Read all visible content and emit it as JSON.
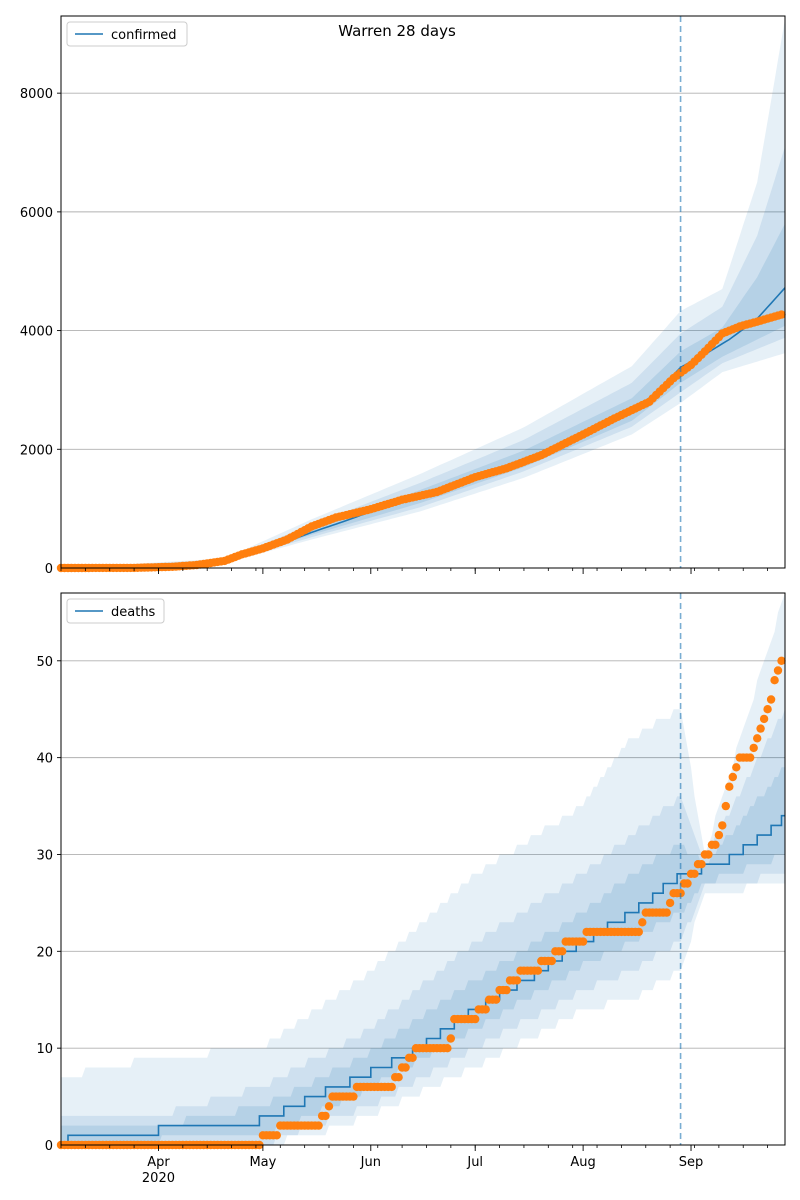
{
  "figure_title": "Warren 28 days",
  "colors": {
    "model_line": "#1f77b4",
    "observed_points": "#ff7f0e",
    "band": "#1f77b4",
    "forecast_start_line": "#1f77b4",
    "grid": "#b0b0b0"
  },
  "x_axis": {
    "start": "2020-03-04",
    "end": "2020-09-28",
    "forecast_start": "2020-08-29",
    "major_ticks": [
      {
        "date": "2020-04-01",
        "label": "Apr",
        "sublabel": "2020"
      },
      {
        "date": "2020-05-01",
        "label": "May",
        "sublabel": ""
      },
      {
        "date": "2020-06-01",
        "label": "Jun",
        "sublabel": ""
      },
      {
        "date": "2020-07-01",
        "label": "Jul",
        "sublabel": ""
      },
      {
        "date": "2020-08-01",
        "label": "Aug",
        "sublabel": ""
      },
      {
        "date": "2020-09-01",
        "label": "Sep",
        "sublabel": ""
      }
    ]
  },
  "chart_data": [
    {
      "type": "line",
      "legend": "confirmed",
      "legend_position": "upper-left",
      "ylim": [
        0,
        9300
      ],
      "yticks": [
        0,
        2000,
        4000,
        6000,
        8000
      ],
      "grid": "horizontal",
      "line_knots": [
        [
          "2020-03-04",
          0
        ],
        [
          "2020-03-20",
          2
        ],
        [
          "2020-04-01",
          10
        ],
        [
          "2020-04-10",
          40
        ],
        [
          "2020-04-20",
          110
        ],
        [
          "2020-04-28",
          260
        ],
        [
          "2020-05-05",
          380
        ],
        [
          "2020-05-15",
          600
        ],
        [
          "2020-05-25",
          800
        ],
        [
          "2020-06-01",
          950
        ],
        [
          "2020-06-15",
          1200
        ],
        [
          "2020-07-01",
          1530
        ],
        [
          "2020-07-15",
          1830
        ],
        [
          "2020-08-01",
          2250
        ],
        [
          "2020-08-15",
          2650
        ],
        [
          "2020-08-22",
          2950
        ],
        [
          "2020-08-29",
          3380
        ],
        [
          "2020-09-05",
          3600
        ],
        [
          "2020-09-12",
          3850
        ],
        [
          "2020-09-20",
          4200
        ],
        [
          "2020-09-28",
          4720
        ]
      ],
      "bands": [
        {
          "lower": [
            [
              "2020-03-04",
              0
            ],
            [
              "2020-04-20",
              80
            ],
            [
              "2020-05-15",
              480
            ],
            [
              "2020-06-15",
              950
            ],
            [
              "2020-07-15",
              1520
            ],
            [
              "2020-08-15",
              2250
            ],
            [
              "2020-08-29",
              2780
            ],
            [
              "2020-09-10",
              3300
            ],
            [
              "2020-09-28",
              3620
            ]
          ],
          "upper": [
            [
              "2020-03-04",
              0
            ],
            [
              "2020-04-20",
              160
            ],
            [
              "2020-05-15",
              820
            ],
            [
              "2020-06-15",
              1580
            ],
            [
              "2020-07-15",
              2370
            ],
            [
              "2020-08-15",
              3400
            ],
            [
              "2020-08-29",
              4330
            ],
            [
              "2020-09-10",
              4700
            ],
            [
              "2020-09-20",
              6500
            ],
            [
              "2020-09-28",
              9250
            ]
          ]
        },
        {
          "lower": [
            [
              "2020-03-04",
              0
            ],
            [
              "2020-04-20",
              90
            ],
            [
              "2020-05-15",
              520
            ],
            [
              "2020-06-15",
              1020
            ],
            [
              "2020-07-15",
              1630
            ],
            [
              "2020-08-15",
              2380
            ],
            [
              "2020-08-29",
              2960
            ],
            [
              "2020-09-10",
              3450
            ],
            [
              "2020-09-28",
              3880
            ]
          ],
          "upper": [
            [
              "2020-03-04",
              0
            ],
            [
              "2020-04-20",
              140
            ],
            [
              "2020-05-15",
              730
            ],
            [
              "2020-06-15",
              1430
            ],
            [
              "2020-07-15",
              2160
            ],
            [
              "2020-08-15",
              3120
            ],
            [
              "2020-08-29",
              3950
            ],
            [
              "2020-09-10",
              4400
            ],
            [
              "2020-09-20",
              5600
            ],
            [
              "2020-09-28",
              7100
            ]
          ]
        },
        {
          "lower": [
            [
              "2020-03-04",
              0
            ],
            [
              "2020-04-20",
              100
            ],
            [
              "2020-05-15",
              560
            ],
            [
              "2020-06-15",
              1090
            ],
            [
              "2020-07-15",
              1700
            ],
            [
              "2020-08-15",
              2480
            ],
            [
              "2020-08-29",
              3120
            ],
            [
              "2020-09-10",
              3560
            ],
            [
              "2020-09-28",
              4080
            ]
          ],
          "upper": [
            [
              "2020-03-04",
              0
            ],
            [
              "2020-04-20",
              125
            ],
            [
              "2020-05-15",
              660
            ],
            [
              "2020-06-15",
              1310
            ],
            [
              "2020-07-15",
              1980
            ],
            [
              "2020-08-15",
              2860
            ],
            [
              "2020-08-29",
              3650
            ],
            [
              "2020-09-10",
              4050
            ],
            [
              "2020-09-20",
              4900
            ],
            [
              "2020-09-28",
              5800
            ]
          ]
        }
      ],
      "observed_knots": [
        [
          "2020-03-04",
          0
        ],
        [
          "2020-03-25",
          2
        ],
        [
          "2020-04-05",
          20
        ],
        [
          "2020-04-12",
          50
        ],
        [
          "2020-04-20",
          120
        ],
        [
          "2020-04-25",
          230
        ],
        [
          "2020-05-01",
          330
        ],
        [
          "2020-05-08",
          480
        ],
        [
          "2020-05-15",
          700
        ],
        [
          "2020-05-22",
          850
        ],
        [
          "2020-06-01",
          990
        ],
        [
          "2020-06-10",
          1150
        ],
        [
          "2020-06-20",
          1280
        ],
        [
          "2020-07-01",
          1530
        ],
        [
          "2020-07-10",
          1680
        ],
        [
          "2020-07-20",
          1900
        ],
        [
          "2020-08-01",
          2250
        ],
        [
          "2020-08-10",
          2520
        ],
        [
          "2020-08-20",
          2800
        ],
        [
          "2020-08-27",
          3200
        ],
        [
          "2020-09-01",
          3420
        ],
        [
          "2020-09-05",
          3650
        ],
        [
          "2020-09-10",
          3950
        ],
        [
          "2020-09-15",
          4070
        ],
        [
          "2020-09-20",
          4150
        ],
        [
          "2020-09-27",
          4270
        ]
      ]
    },
    {
      "type": "line",
      "legend": "deaths",
      "legend_position": "upper-left",
      "ylim": [
        0,
        57
      ],
      "yticks": [
        0,
        10,
        20,
        30,
        40,
        50
      ],
      "grid": "horizontal",
      "step": true,
      "line_knots": [
        [
          "2020-03-04",
          0
        ],
        [
          "2020-03-08",
          1
        ],
        [
          "2020-04-25",
          2
        ],
        [
          "2020-05-04",
          3
        ],
        [
          "2020-05-15",
          5
        ],
        [
          "2020-06-01",
          7.5
        ],
        [
          "2020-06-15",
          10
        ],
        [
          "2020-07-01",
          14
        ],
        [
          "2020-07-15",
          17
        ],
        [
          "2020-08-01",
          21
        ],
        [
          "2020-08-15",
          24
        ],
        [
          "2020-08-29",
          28
        ],
        [
          "2020-09-10",
          29
        ],
        [
          "2020-09-20",
          31.5
        ],
        [
          "2020-09-28",
          34
        ]
      ],
      "bands": [
        {
          "lower": [
            [
              "2020-03-04",
              0
            ],
            [
              "2020-05-01",
              0
            ],
            [
              "2020-05-15",
              1
            ],
            [
              "2020-06-01",
              3
            ],
            [
              "2020-07-01",
              8
            ],
            [
              "2020-08-01",
              14
            ],
            [
              "2020-08-15",
              15
            ],
            [
              "2020-08-29",
              18
            ],
            [
              "2020-09-05",
              26
            ],
            [
              "2020-09-28",
              27
            ]
          ],
          "upper": [
            [
              "2020-03-04",
              7
            ],
            [
              "2020-04-01",
              9
            ],
            [
              "2020-05-01",
              10
            ],
            [
              "2020-06-01",
              18
            ],
            [
              "2020-07-01",
              28
            ],
            [
              "2020-08-01",
              35
            ],
            [
              "2020-08-15",
              42
            ],
            [
              "2020-08-29",
              45
            ],
            [
              "2020-09-05",
              30
            ],
            [
              "2020-09-28",
              57
            ]
          ]
        },
        {
          "lower": [
            [
              "2020-03-04",
              0
            ],
            [
              "2020-05-01",
              0
            ],
            [
              "2020-05-15",
              2
            ],
            [
              "2020-06-01",
              4
            ],
            [
              "2020-07-01",
              10
            ],
            [
              "2020-08-01",
              16
            ],
            [
              "2020-08-15",
              18
            ],
            [
              "2020-08-29",
              21
            ],
            [
              "2020-09-05",
              26.5
            ],
            [
              "2020-09-28",
              28
            ]
          ],
          "upper": [
            [
              "2020-03-04",
              3
            ],
            [
              "2020-04-01",
              3
            ],
            [
              "2020-05-01",
              6
            ],
            [
              "2020-06-01",
              12
            ],
            [
              "2020-07-01",
              21
            ],
            [
              "2020-08-01",
              28
            ],
            [
              "2020-08-15",
              32
            ],
            [
              "2020-08-29",
              36
            ],
            [
              "2020-09-05",
              29.5
            ],
            [
              "2020-09-28",
              45
            ]
          ]
        },
        {
          "lower": [
            [
              "2020-03-04",
              0
            ],
            [
              "2020-05-01",
              1
            ],
            [
              "2020-05-15",
              3
            ],
            [
              "2020-06-01",
              6
            ],
            [
              "2020-07-01",
              12
            ],
            [
              "2020-08-01",
              18.5
            ],
            [
              "2020-08-15",
              21
            ],
            [
              "2020-08-29",
              24
            ],
            [
              "2020-09-05",
              27
            ],
            [
              "2020-09-28",
              30
            ]
          ],
          "upper": [
            [
              "2020-03-04",
              2
            ],
            [
              "2020-04-01",
              2
            ],
            [
              "2020-05-01",
              4
            ],
            [
              "2020-06-01",
              9.5
            ],
            [
              "2020-07-01",
              17
            ],
            [
              "2020-08-01",
              24
            ],
            [
              "2020-08-15",
              28
            ],
            [
              "2020-08-29",
              31
            ],
            [
              "2020-09-05",
              29
            ],
            [
              "2020-09-28",
              39
            ]
          ]
        }
      ],
      "observed_knots": [
        [
          "2020-03-04",
          0
        ],
        [
          "2020-04-30",
          0
        ],
        [
          "2020-05-01",
          1
        ],
        [
          "2020-05-06",
          2
        ],
        [
          "2020-05-18",
          3
        ],
        [
          "2020-05-21",
          5
        ],
        [
          "2020-05-28",
          6
        ],
        [
          "2020-06-08",
          7
        ],
        [
          "2020-06-10",
          8
        ],
        [
          "2020-06-14",
          10
        ],
        [
          "2020-06-24",
          11
        ],
        [
          "2020-06-25",
          13
        ],
        [
          "2020-07-02",
          14
        ],
        [
          "2020-07-11",
          17
        ],
        [
          "2020-07-14",
          18
        ],
        [
          "2020-07-20",
          19
        ],
        [
          "2020-07-27",
          21
        ],
        [
          "2020-08-02",
          22
        ],
        [
          "2020-08-18",
          23
        ],
        [
          "2020-08-19",
          24
        ],
        [
          "2020-08-26",
          25
        ],
        [
          "2020-08-27",
          26
        ],
        [
          "2020-09-01",
          28
        ],
        [
          "2020-09-03",
          29
        ],
        [
          "2020-09-10",
          33
        ],
        [
          "2020-09-12",
          37
        ],
        [
          "2020-09-13",
          38
        ],
        [
          "2020-09-15",
          40
        ],
        [
          "2020-09-19",
          41
        ],
        [
          "2020-09-25",
          48
        ],
        [
          "2020-09-27",
          50
        ]
      ]
    }
  ]
}
